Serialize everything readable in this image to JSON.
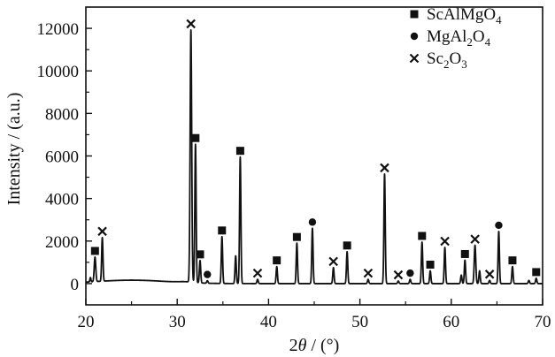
{
  "chart_data": {
    "type": "line",
    "xlabel_parts": [
      "2",
      "θ",
      " / (°)"
    ],
    "ylabel": "Intensity / (a.u.)",
    "xlim": [
      20,
      70
    ],
    "ylim": [
      -1000,
      13000
    ],
    "xticks": [
      20,
      30,
      40,
      50,
      60,
      70
    ],
    "yticks": [
      0,
      2000,
      4000,
      6000,
      8000,
      10000,
      12000
    ],
    "grid": false,
    "legend_position": "top-right",
    "legend": [
      {
        "marker": "square",
        "parts": [
          "ScAlMgO",
          "4",
          ""
        ]
      },
      {
        "marker": "circle",
        "parts": [
          "MgAl",
          "2",
          "O",
          "4"
        ]
      },
      {
        "marker": "cross",
        "parts": [
          "Sc",
          "2",
          "O",
          "3"
        ]
      }
    ],
    "peaks": [
      {
        "x": 20.5,
        "y": 200,
        "w": 0.08,
        "marker": null
      },
      {
        "x": 21.0,
        "y": 1150,
        "w": 0.12,
        "marker": "square"
      },
      {
        "x": 21.8,
        "y": 2050,
        "w": 0.1,
        "marker": "cross"
      },
      {
        "x": 31.5,
        "y": 11850,
        "w": 0.12,
        "marker": "cross"
      },
      {
        "x": 32.0,
        "y": 6500,
        "w": 0.1,
        "marker": "square"
      },
      {
        "x": 32.5,
        "y": 1050,
        "w": 0.1,
        "marker": "square"
      },
      {
        "x": 33.3,
        "y": 120,
        "w": 0.1,
        "marker": "circle"
      },
      {
        "x": 34.9,
        "y": 2200,
        "w": 0.1,
        "marker": "square"
      },
      {
        "x": 36.4,
        "y": 1300,
        "w": 0.1,
        "marker": null
      },
      {
        "x": 36.9,
        "y": 5950,
        "w": 0.1,
        "marker": "square"
      },
      {
        "x": 38.8,
        "y": 200,
        "w": 0.1,
        "marker": "cross"
      },
      {
        "x": 40.9,
        "y": 800,
        "w": 0.1,
        "marker": "square"
      },
      {
        "x": 43.1,
        "y": 1900,
        "w": 0.1,
        "marker": "square"
      },
      {
        "x": 44.8,
        "y": 2600,
        "w": 0.1,
        "marker": "circle"
      },
      {
        "x": 47.1,
        "y": 750,
        "w": 0.1,
        "marker": "cross"
      },
      {
        "x": 48.6,
        "y": 1500,
        "w": 0.1,
        "marker": "square"
      },
      {
        "x": 50.9,
        "y": 200,
        "w": 0.1,
        "marker": "cross"
      },
      {
        "x": 52.7,
        "y": 5150,
        "w": 0.1,
        "marker": "cross"
      },
      {
        "x": 54.2,
        "y": 120,
        "w": 0.1,
        "marker": "cross"
      },
      {
        "x": 55.5,
        "y": 200,
        "w": 0.1,
        "marker": "circle"
      },
      {
        "x": 56.8,
        "y": 1950,
        "w": 0.1,
        "marker": "square"
      },
      {
        "x": 57.7,
        "y": 600,
        "w": 0.1,
        "marker": "square"
      },
      {
        "x": 59.3,
        "y": 1700,
        "w": 0.1,
        "marker": "cross"
      },
      {
        "x": 61.1,
        "y": 400,
        "w": 0.1,
        "marker": null
      },
      {
        "x": 61.5,
        "y": 1100,
        "w": 0.1,
        "marker": "square"
      },
      {
        "x": 62.6,
        "y": 1800,
        "w": 0.12,
        "marker": "cross"
      },
      {
        "x": 63.1,
        "y": 600,
        "w": 0.1,
        "marker": null
      },
      {
        "x": 64.2,
        "y": 150,
        "w": 0.1,
        "marker": "cross"
      },
      {
        "x": 65.2,
        "y": 2450,
        "w": 0.1,
        "marker": "circle"
      },
      {
        "x": 66.7,
        "y": 800,
        "w": 0.1,
        "marker": "square"
      },
      {
        "x": 68.5,
        "y": 150,
        "w": 0.1,
        "marker": null
      },
      {
        "x": 69.3,
        "y": 250,
        "w": 0.1,
        "marker": "square"
      }
    ]
  }
}
